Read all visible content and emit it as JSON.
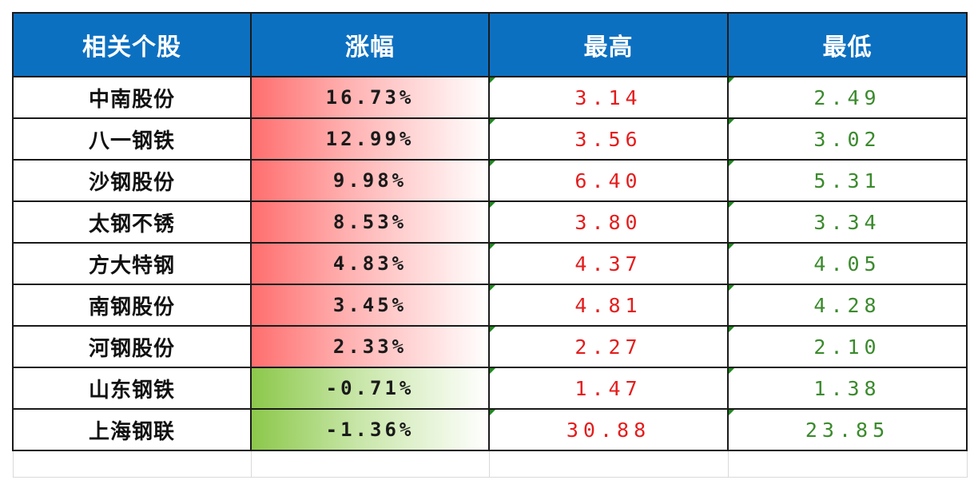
{
  "header": {
    "col1": "相关个股",
    "col2": "涨幅",
    "col3": "最高",
    "col4": "最低"
  },
  "rows": [
    {
      "name": "中南股份",
      "change": "16.73%",
      "high": "3.14",
      "low": "2.49",
      "direction": "up"
    },
    {
      "name": "八一钢铁",
      "change": "12.99%",
      "high": "3.56",
      "low": "3.02",
      "direction": "up"
    },
    {
      "name": "沙钢股份",
      "change": "9.98%",
      "high": "6.40",
      "low": "5.31",
      "direction": "up"
    },
    {
      "name": "太钢不锈",
      "change": "8.53%",
      "high": "3.80",
      "low": "3.34",
      "direction": "up"
    },
    {
      "name": "方大特钢",
      "change": "4.83%",
      "high": "4.37",
      "low": "4.05",
      "direction": "up"
    },
    {
      "name": "南钢股份",
      "change": "3.45%",
      "high": "4.81",
      "low": "4.28",
      "direction": "up"
    },
    {
      "name": "河钢股份",
      "change": "2.33%",
      "high": "2.27",
      "low": "2.10",
      "direction": "up"
    },
    {
      "name": "山东钢铁",
      "change": "-0.71%",
      "high": "1.47",
      "low": "1.38",
      "direction": "down"
    },
    {
      "name": "上海钢联",
      "change": "-1.36%",
      "high": "30.88",
      "low": "23.85",
      "direction": "down"
    }
  ],
  "colors": {
    "header_bg": "#0c70c1",
    "high_text": "#e51c1c",
    "low_text": "#3a8a2c",
    "up_fill": "#ff6e6e",
    "down_fill": "#8cc84b"
  }
}
